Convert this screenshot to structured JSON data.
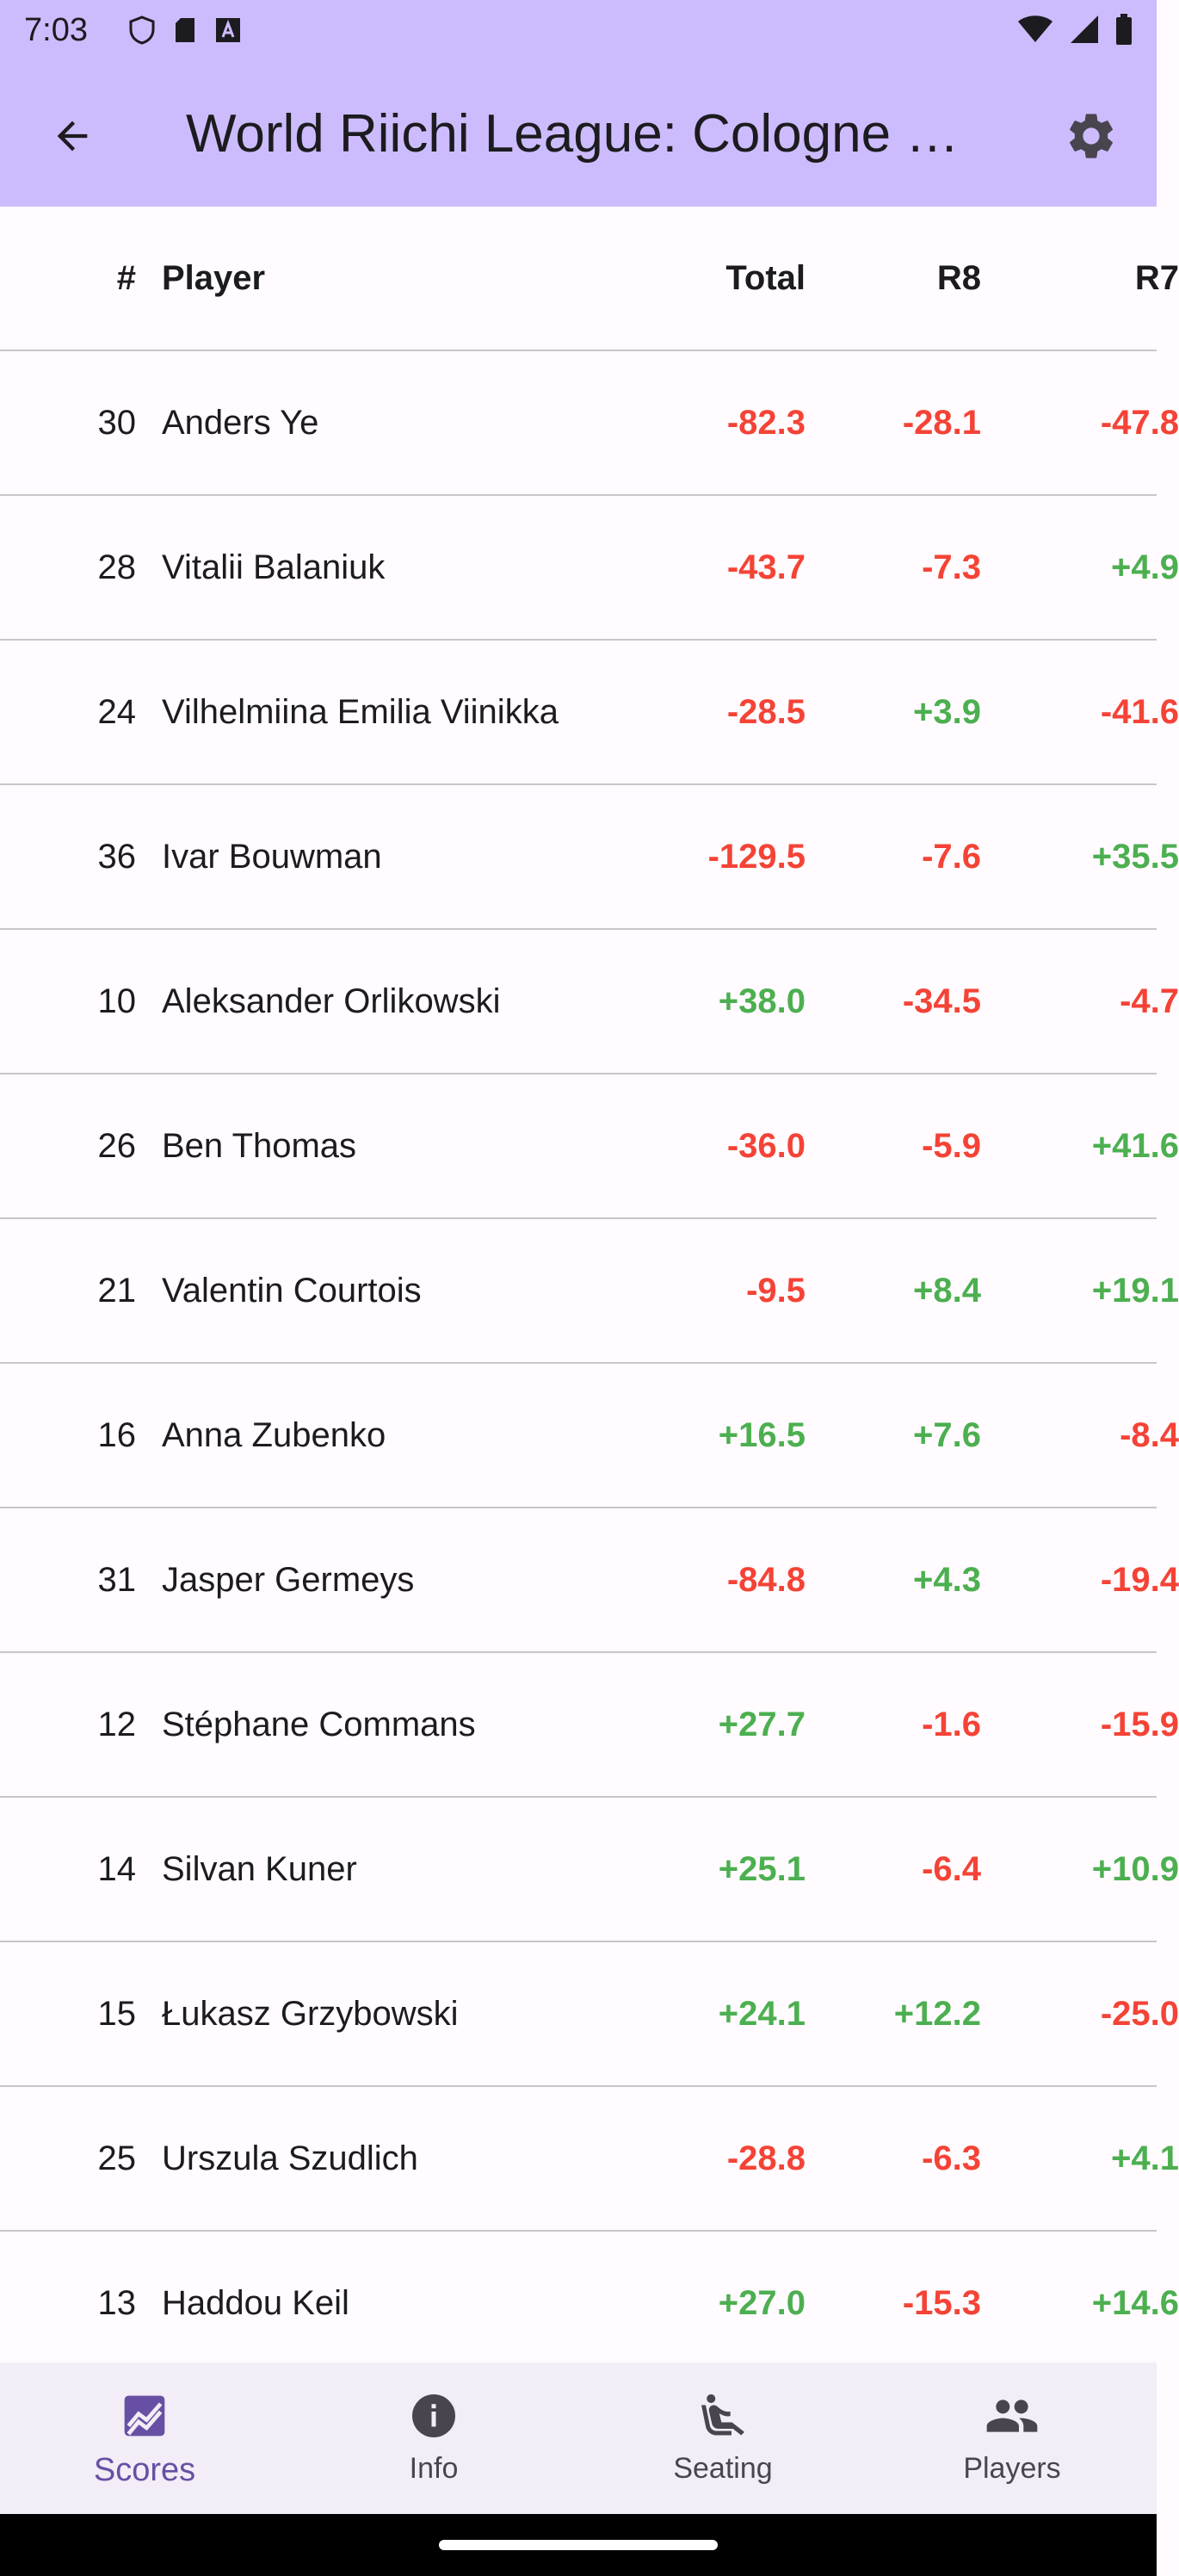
{
  "status_bar": {
    "time": "7:03"
  },
  "app_bar": {
    "title": "World Riichi League: Cologne …"
  },
  "table": {
    "columns": [
      "#",
      "Player",
      "Total",
      "R8",
      "R7"
    ],
    "rows": [
      {
        "rank": "30",
        "name": "Anders Ye",
        "total": "-82.3",
        "r8": "-28.1",
        "r7": "-47.8"
      },
      {
        "rank": "28",
        "name": "Vitalii Balaniuk",
        "total": "-43.7",
        "r8": "-7.3",
        "r7": "+4.9"
      },
      {
        "rank": "24",
        "name": "Vilhelmiina Emilia Viinikka",
        "total": "-28.5",
        "r8": "+3.9",
        "r7": "-41.6"
      },
      {
        "rank": "36",
        "name": "Ivar Bouwman",
        "total": "-129.5",
        "r8": "-7.6",
        "r7": "+35.5"
      },
      {
        "rank": "10",
        "name": "Aleksander Orlikowski",
        "total": "+38.0",
        "r8": "-34.5",
        "r7": "-4.7"
      },
      {
        "rank": "26",
        "name": "Ben Thomas",
        "total": "-36.0",
        "r8": "-5.9",
        "r7": "+41.6"
      },
      {
        "rank": "21",
        "name": "Valentin Courtois",
        "total": "-9.5",
        "r8": "+8.4",
        "r7": "+19.1"
      },
      {
        "rank": "16",
        "name": "Anna Zubenko",
        "total": "+16.5",
        "r8": "+7.6",
        "r7": "-8.4"
      },
      {
        "rank": "31",
        "name": "Jasper Germeys",
        "total": "-84.8",
        "r8": "+4.3",
        "r7": "-19.4"
      },
      {
        "rank": "12",
        "name": "Stéphane Commans",
        "total": "+27.7",
        "r8": "-1.6",
        "r7": "-15.9"
      },
      {
        "rank": "14",
        "name": "Silvan Kuner",
        "total": "+25.1",
        "r8": "-6.4",
        "r7": "+10.9"
      },
      {
        "rank": "15",
        "name": "Łukasz Grzybowski",
        "total": "+24.1",
        "r8": "+12.2",
        "r7": "-25.0"
      },
      {
        "rank": "25",
        "name": "Urszula Szudlich",
        "total": "-28.8",
        "r8": "-6.3",
        "r7": "+4.1"
      },
      {
        "rank": "13",
        "name": "Haddou Keil",
        "total": "+27.0",
        "r8": "-15.3",
        "r7": "+14.6"
      }
    ]
  },
  "bottom_nav": {
    "items": [
      {
        "label": "Scores",
        "icon": "scores-chart-icon",
        "active": true
      },
      {
        "label": "Info",
        "icon": "info-icon",
        "active": false
      },
      {
        "label": "Seating",
        "icon": "seat-icon",
        "active": false
      },
      {
        "label": "Players",
        "icon": "people-icon",
        "active": false
      }
    ]
  },
  "colors": {
    "app_bar": "#cdbcfd",
    "positive": "#4caf50",
    "negative": "#f44336",
    "nav_active": "#6750a4",
    "nav_bg": "#f3edf7"
  }
}
